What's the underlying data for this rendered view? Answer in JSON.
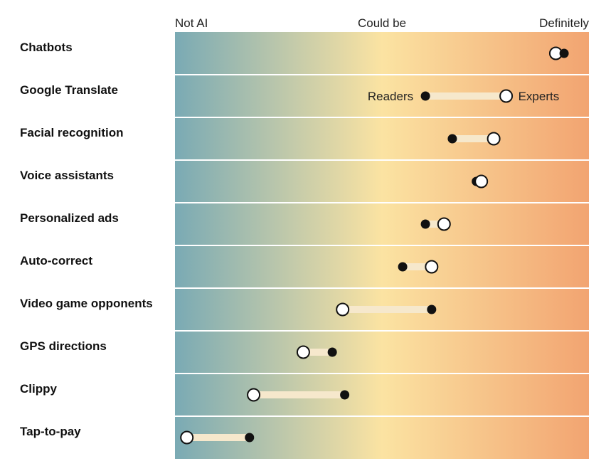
{
  "colors": {
    "gradient_left": "#7aaab4",
    "gradient_mid": "#fbe3a2",
    "gradient_right": "#f2a471",
    "connector": "#f6e8cc",
    "readers_dot": "#111111",
    "experts_dot_fill": "#ffffff",
    "experts_dot_stroke": "#111111",
    "row_separator": "#ffffff"
  },
  "chart_data": {
    "type": "dumbbell",
    "title": "",
    "scale": {
      "min": 0,
      "max": 1,
      "tick_labels": [
        {
          "value": 0,
          "label": "Not AI"
        },
        {
          "value": 0.5,
          "label": "Could be"
        },
        {
          "value": 1,
          "label": "Definitely"
        }
      ]
    },
    "legend": {
      "readers": "Readers",
      "experts": "Experts",
      "annotated_row": 1
    },
    "rows": [
      {
        "name": "Chatbots",
        "readers": 0.94,
        "experts": 0.92
      },
      {
        "name": "Google Translate",
        "readers": 0.605,
        "experts": 0.8
      },
      {
        "name": "Facial recognition",
        "readers": 0.67,
        "experts": 0.77
      },
      {
        "name": "Voice assistants",
        "readers": 0.728,
        "experts": 0.74
      },
      {
        "name": "Personalized ads",
        "readers": 0.605,
        "experts": 0.65
      },
      {
        "name": "Auto-correct",
        "readers": 0.55,
        "experts": 0.62
      },
      {
        "name": "Video game opponents",
        "readers": 0.62,
        "experts": 0.405
      },
      {
        "name": "GPS directions",
        "readers": 0.38,
        "experts": 0.31
      },
      {
        "name": "Clippy",
        "readers": 0.41,
        "experts": 0.19
      },
      {
        "name": "Tap-to-pay",
        "readers": 0.18,
        "experts": 0.015
      }
    ]
  }
}
